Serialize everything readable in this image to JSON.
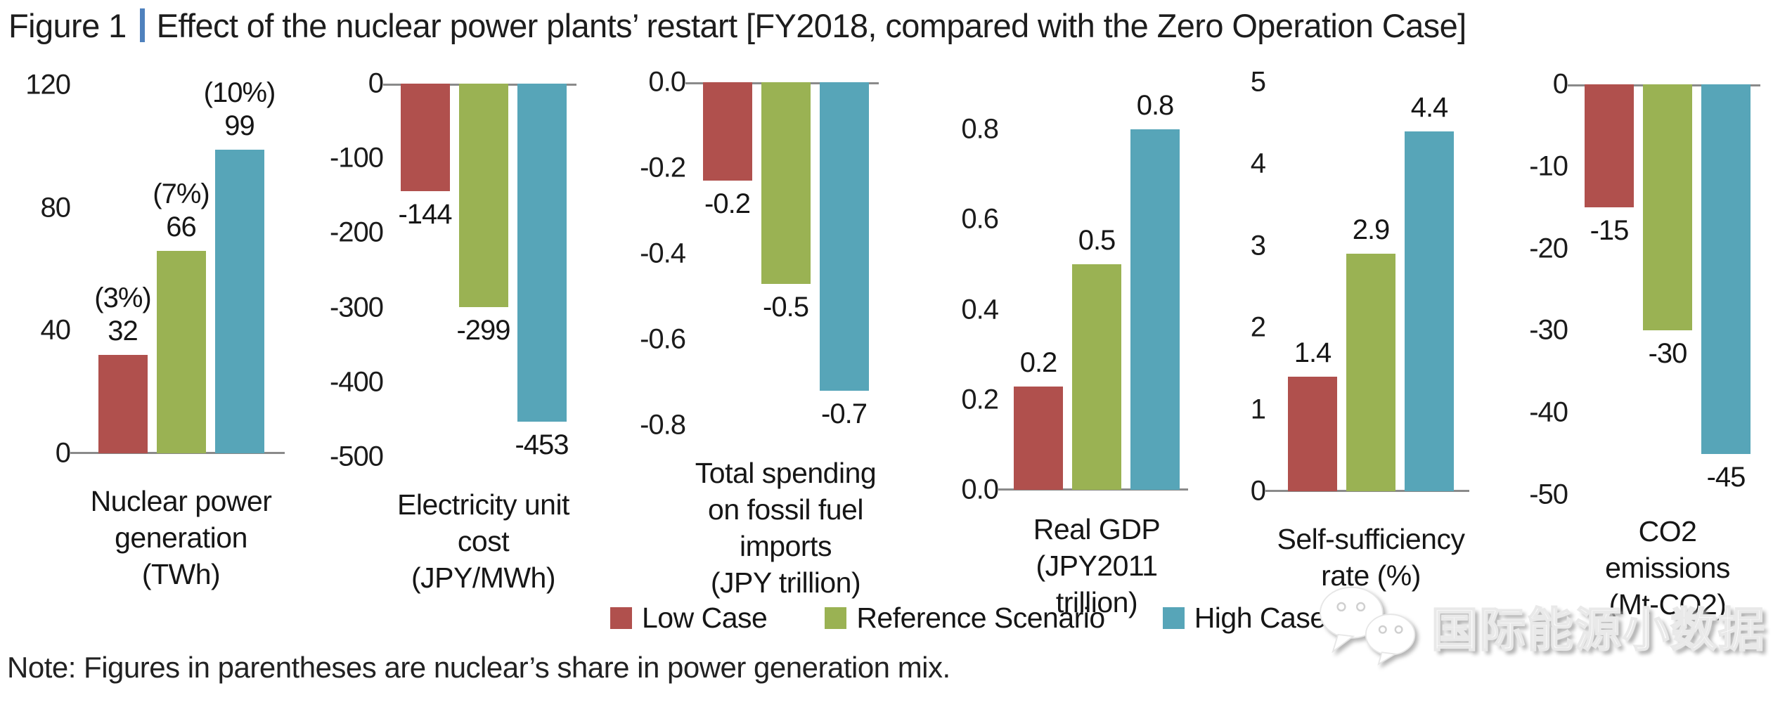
{
  "title": {
    "figure_label": "Figure 1",
    "separator": "|",
    "text": "Effect of the nuclear power plants’ restart [FY2018, compared with the Zero Operation Case]"
  },
  "colors": {
    "low_case": "#b0504d",
    "reference_scenario": "#9ab253",
    "high_case": "#57a5b8",
    "axis_line": "#8a8a8a",
    "title_separator": "#4f81bd"
  },
  "legend": [
    {
      "label": "Low Case",
      "color": "#b0504d"
    },
    {
      "label": "Reference Scenario",
      "color": "#9ab253"
    },
    {
      "label": "High Case",
      "color": "#57a5b8"
    }
  ],
  "note": "Note: Figures in parentheses are nuclear’s share in power generation mix.",
  "watermark": {
    "icon": "wechat-logo",
    "text": "国际能源小数据"
  },
  "chart_data": [
    {
      "type": "bar",
      "id": "nuclear-power-generation",
      "title": "Nuclear power generation (TWh)",
      "title_lines": [
        "Nuclear power",
        "generation",
        "(TWh)"
      ],
      "direction": "up",
      "ylim": [
        0,
        120
      ],
      "ticks": [
        "120",
        "80",
        "40",
        "0"
      ],
      "series": [
        "Low Case",
        "Reference Scenario",
        "High Case"
      ],
      "values": [
        32,
        66,
        99
      ],
      "value_labels": [
        "32",
        "66",
        "99"
      ],
      "annotations": [
        "(3%)",
        "(7%)",
        "(10%)"
      ]
    },
    {
      "type": "bar",
      "id": "electricity-unit-cost",
      "title": "Electricity unit cost (JPY/MWh)",
      "title_lines": [
        "Electricity unit",
        "cost",
        "(JPY/MWh)"
      ],
      "direction": "down",
      "ylim": [
        -500,
        0
      ],
      "ticks": [
        "0",
        "-100",
        "-200",
        "-300",
        "-400",
        "-500"
      ],
      "series": [
        "Low Case",
        "Reference Scenario",
        "High Case"
      ],
      "values": [
        -144,
        -299,
        -453
      ],
      "value_labels": [
        "-144",
        "-299",
        "-453"
      ],
      "annotations": null
    },
    {
      "type": "bar",
      "id": "fossil-fuel-imports",
      "title": "Total spending on fossil fuel imports (JPY trillion)",
      "title_lines": [
        "Total spending",
        "on fossil fuel",
        "imports",
        "(JPY trillion)"
      ],
      "direction": "down",
      "ylim": [
        -0.8,
        0
      ],
      "ticks": [
        "0.0",
        "-0.2",
        "-0.4",
        "-0.6",
        "-0.8"
      ],
      "series": [
        "Low Case",
        "Reference Scenario",
        "High Case"
      ],
      "values": [
        -0.23,
        -0.47,
        -0.72
      ],
      "value_labels": [
        "-0.2",
        "-0.5",
        "-0.7"
      ],
      "annotations": null
    },
    {
      "type": "bar",
      "id": "real-gdp",
      "title": "Real GDP (JPY2011 trillion)",
      "title_lines": [
        "Real GDP",
        "(JPY2011 trillion)"
      ],
      "direction": "up",
      "ylim": [
        0,
        0.8
      ],
      "ticks": [
        "0.8",
        "0.6",
        "0.4",
        "0.2",
        "0.0"
      ],
      "series": [
        "Low Case",
        "Reference Scenario",
        "High Case"
      ],
      "values": [
        0.23,
        0.5,
        0.8
      ],
      "value_labels": [
        "0.2",
        "0.5",
        "0.8"
      ],
      "annotations": null
    },
    {
      "type": "bar",
      "id": "self-sufficiency-rate",
      "title": "Self-sufficiency rate (%)",
      "title_lines": [
        "Self-sufficiency",
        "rate (%)"
      ],
      "direction": "up",
      "ylim": [
        0,
        5
      ],
      "ticks": [
        "5",
        "4",
        "3",
        "2",
        "1",
        "0"
      ],
      "series": [
        "Low Case",
        "Reference Scenario",
        "High Case"
      ],
      "values": [
        1.4,
        2.9,
        4.4
      ],
      "value_labels": [
        "1.4",
        "2.9",
        "4.4"
      ],
      "annotations": null
    },
    {
      "type": "bar",
      "id": "co2-emissions",
      "title": "CO2 emissions (Mt-CO2)",
      "title_lines": [
        "CO2 emissions",
        "(Mt-CO2)"
      ],
      "direction": "down",
      "ylim": [
        -50,
        0
      ],
      "ticks": [
        "0",
        "-10",
        "-20",
        "-30",
        "-40",
        "-50"
      ],
      "series": [
        "Low Case",
        "Reference Scenario",
        "High Case"
      ],
      "values": [
        -15,
        -30,
        -45
      ],
      "value_labels": [
        "-15",
        "-30",
        "-45"
      ],
      "annotations": null
    }
  ]
}
